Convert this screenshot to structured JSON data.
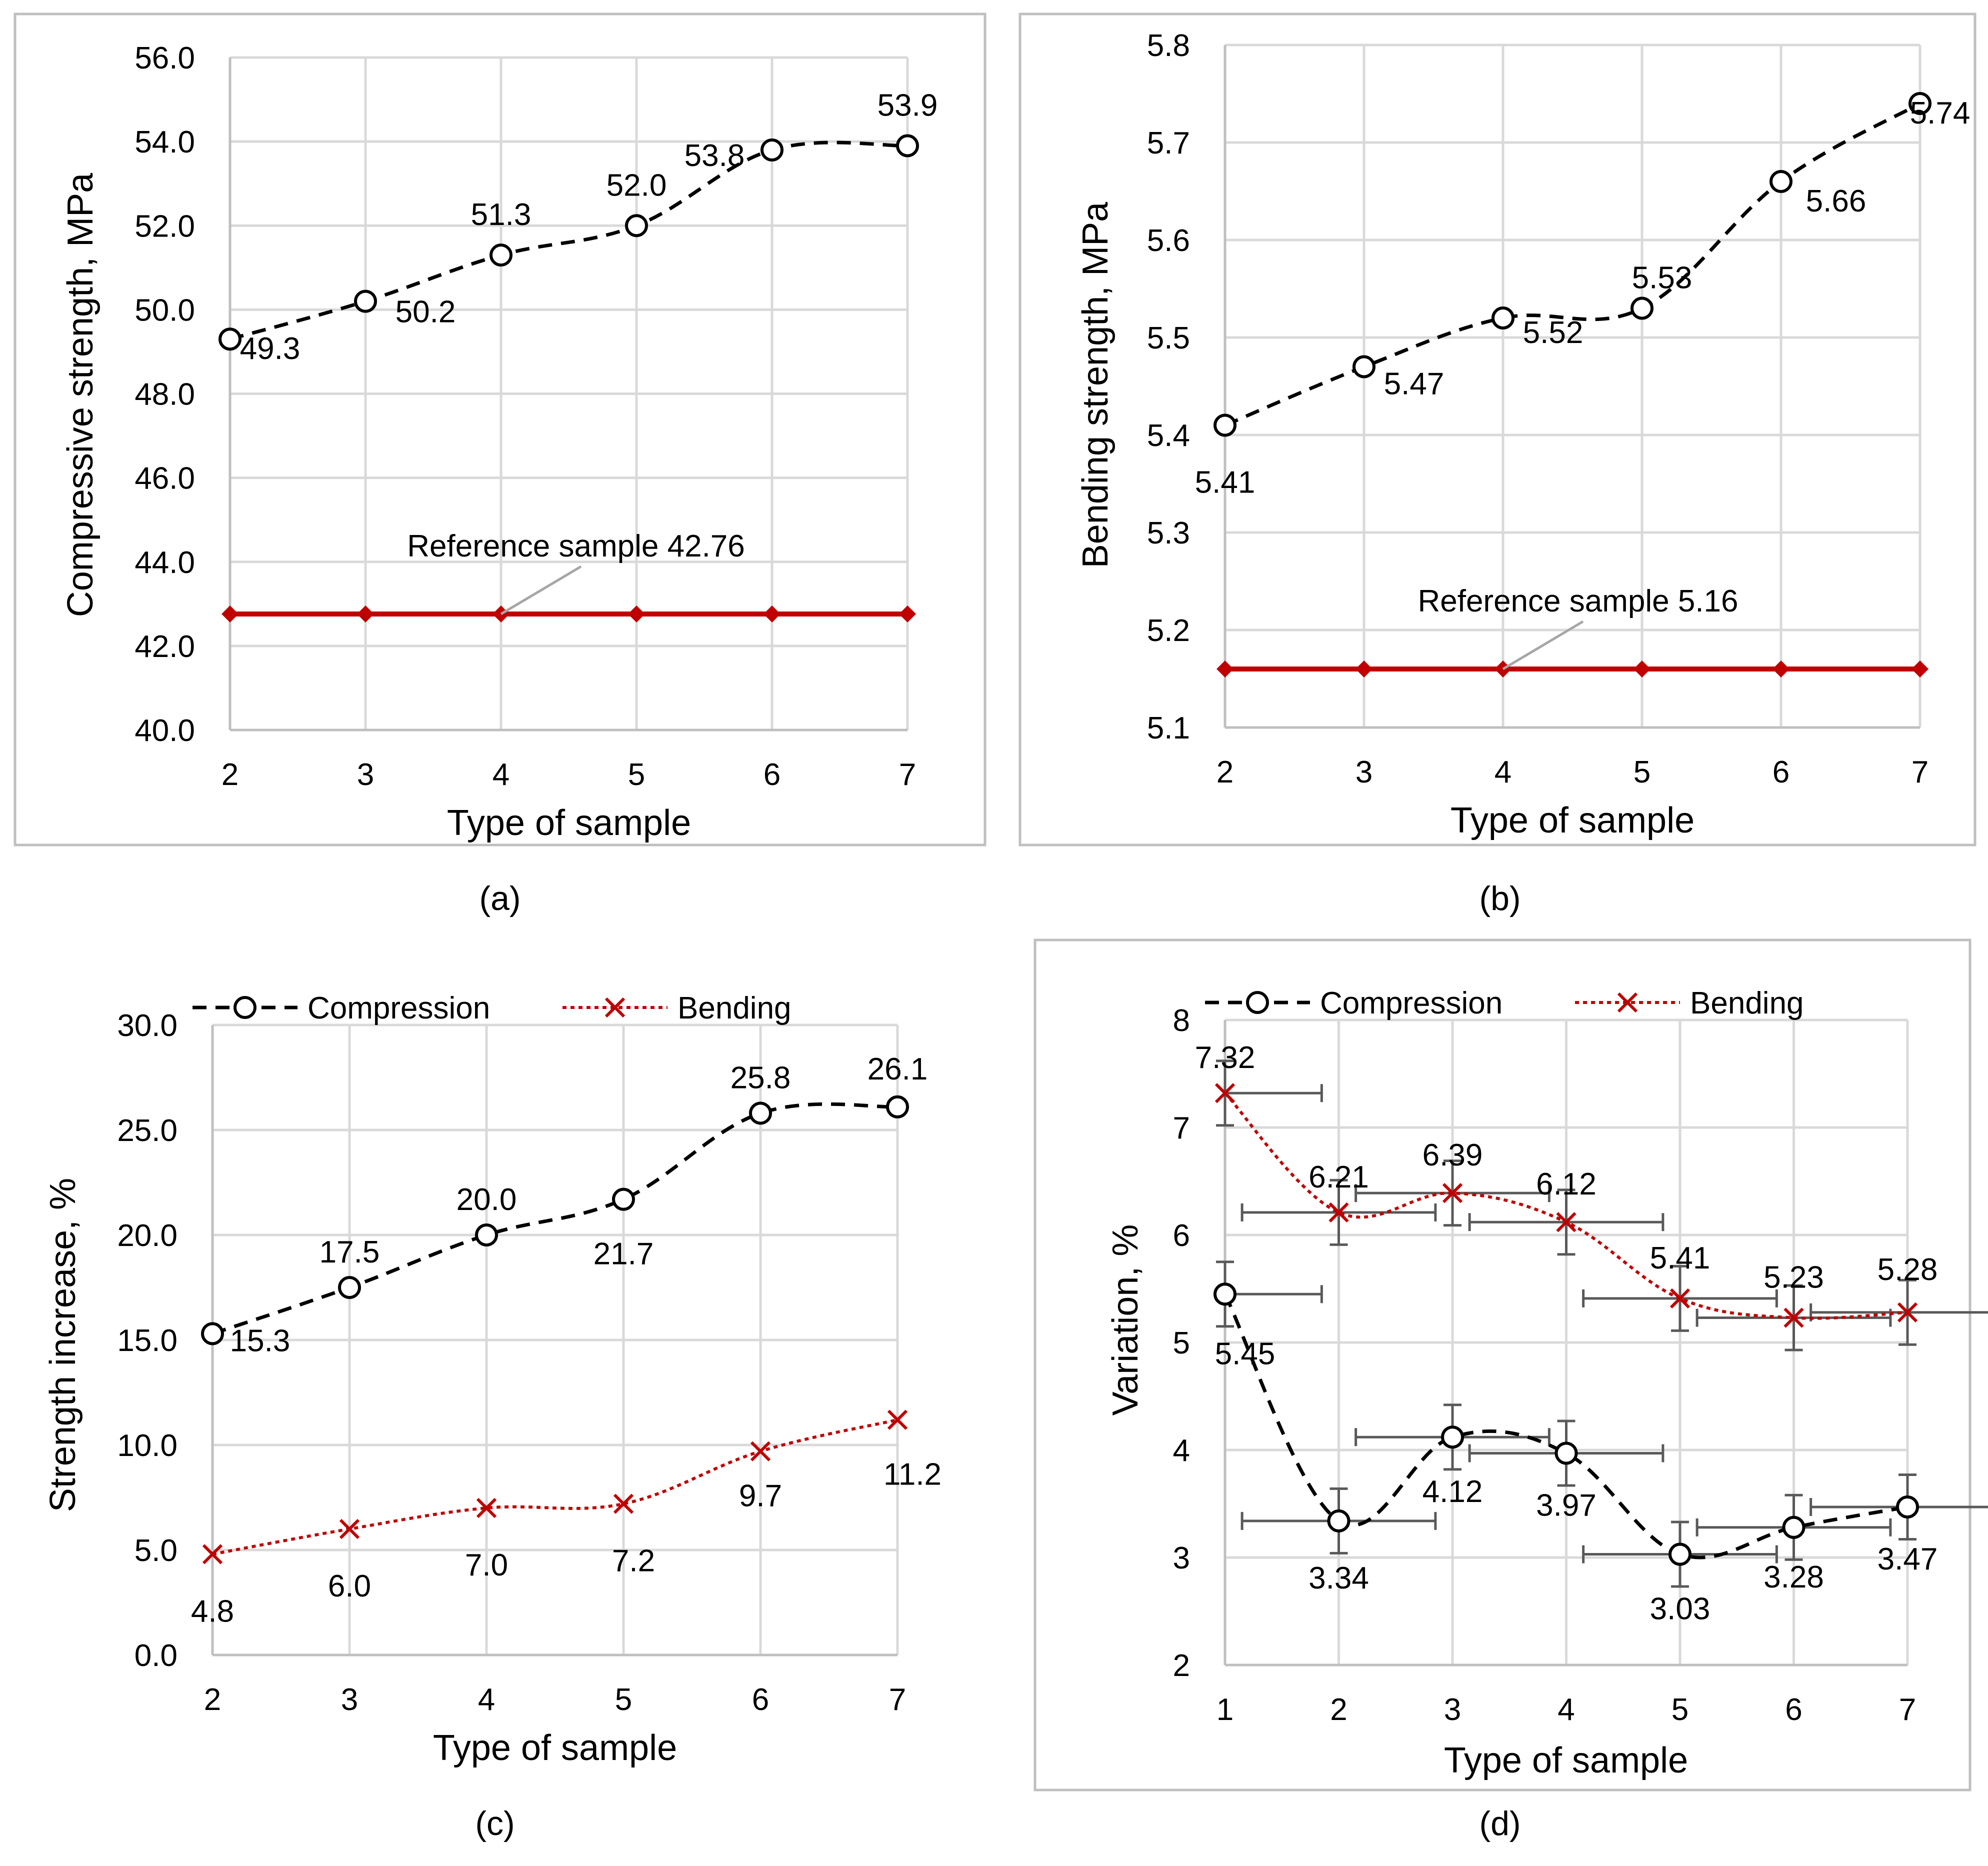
{
  "figure": {
    "panel_labels": [
      "(a)",
      "(b)",
      "(c)",
      "(d)"
    ]
  },
  "colors": {
    "black_series": "#000000",
    "red_series": "#C00000",
    "grid": "#D9D9D9",
    "frame": "#BFBFBF",
    "axis": "#BFBFBF",
    "error_bar": "#595959",
    "leader": "#A6A6A6"
  },
  "chart_data": [
    {
      "id": "a",
      "type": "line",
      "xlabel": "Type of sample",
      "ylabel": "Compressive strength, MPa",
      "xlim": [
        2,
        7
      ],
      "ylim": [
        40,
        56
      ],
      "x_ticks": [
        2,
        3,
        4,
        5,
        6,
        7
      ],
      "y_ticks": [
        "40.0",
        "42.0",
        "44.0",
        "46.0",
        "48.0",
        "50.0",
        "52.0",
        "54.0",
        "56.0"
      ],
      "y_tick_values": [
        40,
        42,
        44,
        46,
        48,
        50,
        52,
        54,
        56
      ],
      "grid": true,
      "series": [
        {
          "name": "Compressive strength",
          "x": [
            2,
            3,
            4,
            5,
            6,
            7
          ],
          "values": [
            49.3,
            50.2,
            51.3,
            52.0,
            53.8,
            53.9
          ],
          "labels": [
            "49.3",
            "50.2",
            "51.3",
            "52.0",
            "53.8",
            "53.9"
          ],
          "style": "dashed",
          "marker": "circle",
          "color": "#000000"
        },
        {
          "name": "Reference sample",
          "x": [
            2,
            3,
            4,
            5,
            6,
            7
          ],
          "values": [
            42.76,
            42.76,
            42.76,
            42.76,
            42.76,
            42.76
          ],
          "style": "solid",
          "marker": "diamond",
          "color": "#C00000"
        }
      ],
      "annotation": {
        "text": "Reference sample 42.76",
        "x": 4,
        "y": 42.76
      }
    },
    {
      "id": "b",
      "type": "line",
      "xlabel": "Type of sample",
      "ylabel": "Bending strength, MPa",
      "xlim": [
        2,
        7
      ],
      "ylim": [
        5.1,
        5.8
      ],
      "x_ticks": [
        2,
        3,
        4,
        5,
        6,
        7
      ],
      "y_ticks": [
        "5.1",
        "5.2",
        "5.3",
        "5.4",
        "5.5",
        "5.6",
        "5.7",
        "5.8"
      ],
      "y_tick_values": [
        5.1,
        5.2,
        5.3,
        5.4,
        5.5,
        5.6,
        5.7,
        5.8
      ],
      "grid": true,
      "series": [
        {
          "name": "Bending strength",
          "x": [
            2,
            3,
            4,
            5,
            6,
            7
          ],
          "values": [
            5.41,
            5.47,
            5.52,
            5.53,
            5.66,
            5.74
          ],
          "labels": [
            "5.41",
            "5.47",
            "5.52",
            "5.53",
            "5.66",
            "5.74"
          ],
          "style": "dashed",
          "marker": "circle",
          "color": "#000000"
        },
        {
          "name": "Reference sample",
          "x": [
            2,
            3,
            4,
            5,
            6,
            7
          ],
          "values": [
            5.16,
            5.16,
            5.16,
            5.16,
            5.16,
            5.16
          ],
          "style": "solid",
          "marker": "diamond",
          "color": "#C00000"
        }
      ],
      "annotation": {
        "text": "Reference sample 5.16",
        "x": 4,
        "y": 5.16
      }
    },
    {
      "id": "c",
      "type": "line",
      "xlabel": "Type of sample",
      "ylabel": "Strength increase, %",
      "xlim": [
        2,
        7
      ],
      "ylim": [
        0,
        30
      ],
      "x_ticks": [
        2,
        3,
        4,
        5,
        6,
        7
      ],
      "y_ticks": [
        "0.0",
        "5.0",
        "10.0",
        "15.0",
        "20.0",
        "25.0",
        "30.0"
      ],
      "y_tick_values": [
        0,
        5,
        10,
        15,
        20,
        25,
        30
      ],
      "grid": true,
      "legend": {
        "position": "top",
        "entries": [
          "Compression",
          "Bending"
        ]
      },
      "series": [
        {
          "name": "Compression",
          "x": [
            2,
            3,
            4,
            5,
            6,
            7
          ],
          "values": [
            15.3,
            17.5,
            20.0,
            21.7,
            25.8,
            26.1
          ],
          "labels": [
            "15.3",
            "17.5",
            "20.0",
            "21.7",
            "25.8",
            "26.1"
          ],
          "style": "dashed",
          "marker": "circle",
          "color": "#000000"
        },
        {
          "name": "Bending",
          "x": [
            2,
            3,
            4,
            5,
            6,
            7
          ],
          "values": [
            4.8,
            6.0,
            7.0,
            7.2,
            9.7,
            11.2
          ],
          "labels": [
            "4.8",
            "6.0",
            "7.0",
            "7.2",
            "9.7",
            "11.2"
          ],
          "style": "dotted",
          "marker": "x",
          "color": "#C00000"
        }
      ]
    },
    {
      "id": "d",
      "type": "line",
      "xlabel": "Type of sample",
      "ylabel": "Variation, %",
      "xlim": [
        1,
        7
      ],
      "ylim": [
        2,
        8
      ],
      "x_ticks": [
        1,
        2,
        3,
        4,
        5,
        6,
        7
      ],
      "y_ticks": [
        "2",
        "3",
        "4",
        "5",
        "6",
        "7",
        "8"
      ],
      "y_tick_values": [
        2,
        3,
        4,
        5,
        6,
        7,
        8
      ],
      "grid": true,
      "legend": {
        "position": "top",
        "entries": [
          "Compression",
          "Bending"
        ]
      },
      "error_bars": {
        "x_err": 0.85,
        "y_err": 0.3
      },
      "series": [
        {
          "name": "Compression",
          "x": [
            1,
            2,
            3,
            4,
            5,
            6,
            7
          ],
          "values": [
            5.45,
            3.34,
            4.12,
            3.97,
            3.03,
            3.28,
            3.47
          ],
          "labels": [
            "5.45",
            "3.34",
            "4.12",
            "3.97",
            "3.03",
            "3.28",
            "3.47"
          ],
          "style": "dashed",
          "marker": "circle",
          "color": "#000000"
        },
        {
          "name": "Bending",
          "x": [
            1,
            2,
            3,
            4,
            5,
            6,
            7
          ],
          "values": [
            7.32,
            6.21,
            6.39,
            6.12,
            5.41,
            5.23,
            5.28
          ],
          "labels": [
            "7.32",
            "6.21",
            "6.39",
            "6.12",
            "5.41",
            "5.23",
            "5.28"
          ],
          "style": "dotted",
          "marker": "x",
          "color": "#C00000"
        }
      ]
    }
  ]
}
